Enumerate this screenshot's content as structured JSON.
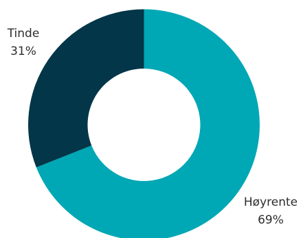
{
  "chart_data": {
    "type": "pie",
    "donut": true,
    "slices": [
      {
        "label": "Høyrente",
        "percent_label": "69%",
        "value": 69,
        "color": "#00A7B5"
      },
      {
        "label": "Tinde",
        "percent_label": "31%",
        "value": 31,
        "color": "#023648"
      }
    ],
    "legend": "none"
  }
}
